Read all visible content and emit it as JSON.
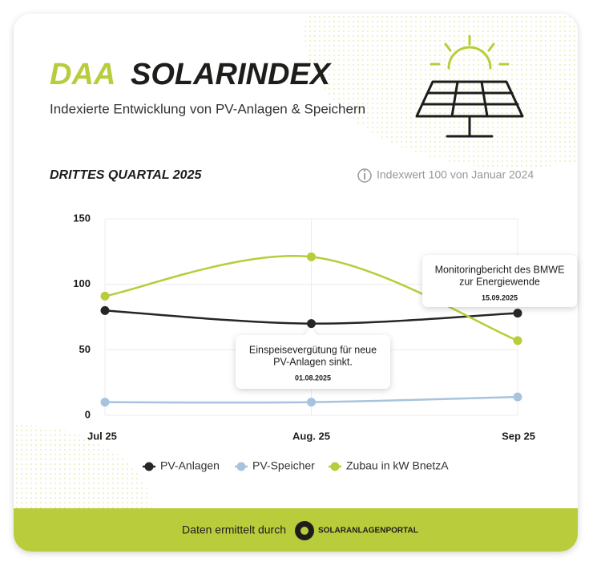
{
  "header": {
    "logo": "DAA",
    "title": "SOLARINDEX",
    "subtitle": "Indexierte Entwicklung von PV-Anlagen & Speichern"
  },
  "chart_data": {
    "type": "line",
    "title": "DRITTES QUARTAL 2025",
    "note": "Indexwert 100 von Januar 2024",
    "categories": [
      "Jul 25",
      "Aug. 25",
      "Sep 25"
    ],
    "series": [
      {
        "name": "PV-Anlagen",
        "color": "#262626",
        "values": [
          80,
          70,
          78
        ]
      },
      {
        "name": "PV-Speicher",
        "color": "#a7c3dd",
        "values": [
          10,
          10,
          14
        ]
      },
      {
        "name": "Zubau in kW BnetzA",
        "color": "#b9cc3b",
        "values": [
          91,
          121,
          57
        ]
      }
    ],
    "ylim": [
      0,
      150
    ],
    "yticks": [
      0,
      50,
      100,
      150
    ],
    "grid": true,
    "annotations": [
      {
        "lines": [
          "Einspeisevergütung für  neue",
          "PV-Anlagen sinkt."
        ],
        "date": "01.08.2025"
      },
      {
        "lines": [
          "Monitoringbericht des BMWE",
          "zur Energiewende"
        ],
        "date": "15.09.2025"
      }
    ]
  },
  "footer": {
    "text": "Daten ermittelt durch",
    "brand": "SOLARANLAGENPORTAL"
  }
}
